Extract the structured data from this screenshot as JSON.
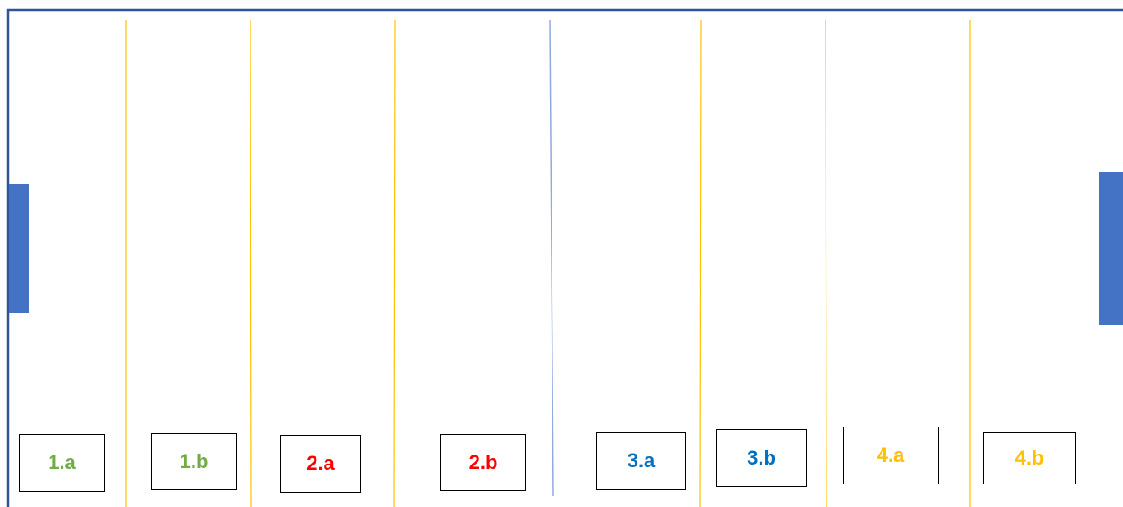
{
  "colors": {
    "border": "#2f5597",
    "lane_line": "#ffc000",
    "center_line": "#8faadc",
    "goal": "#4472c4"
  },
  "zones": [
    {
      "label": "1.a",
      "color": "#70ad47"
    },
    {
      "label": "1.b",
      "color": "#70ad47"
    },
    {
      "label": "2.a",
      "color": "#ff0000"
    },
    {
      "label": "2.b",
      "color": "#ff0000"
    },
    {
      "label": "3.a",
      "color": "#0070c0"
    },
    {
      "label": "3.b",
      "color": "#0070c0"
    },
    {
      "label": "4.a",
      "color": "#ffc000"
    },
    {
      "label": "4.b",
      "color": "#ffc000"
    }
  ]
}
